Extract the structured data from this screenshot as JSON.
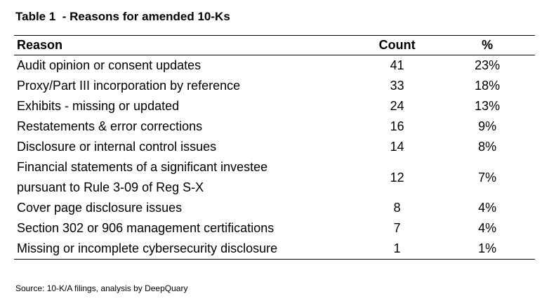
{
  "title": "Table 1  - Reasons for amended 10-Ks",
  "table": {
    "headers": {
      "reason": "Reason",
      "count": "Count",
      "percent": "%"
    },
    "rows": [
      {
        "reason": "Audit opinion or consent updates",
        "count": "41",
        "percent": "23%"
      },
      {
        "reason": "Proxy/Part III incorporation by reference",
        "count": "33",
        "percent": "18%"
      },
      {
        "reason": "Exhibits - missing or updated",
        "count": "24",
        "percent": "13%"
      },
      {
        "reason": "Restatements & error corrections",
        "count": "16",
        "percent": "9%"
      },
      {
        "reason": "Disclosure or internal control issues",
        "count": "14",
        "percent": "8%"
      },
      {
        "reason_line1": "Financial statements of a significant investee",
        "reason_line2": "pursuant to Rule 3-09 of Reg S-X",
        "count": "12",
        "percent": "7%"
      },
      {
        "reason": "Cover page disclosure issues",
        "count": "8",
        "percent": "4%"
      },
      {
        "reason": "Section 302 or 906 management certifications",
        "count": "7",
        "percent": "4%"
      },
      {
        "reason": "Missing or incomplete cybersecurity disclosure",
        "count": "1",
        "percent": "1%"
      }
    ]
  },
  "source": "Source: 10-K/A filings, analysis by DeepQuary"
}
